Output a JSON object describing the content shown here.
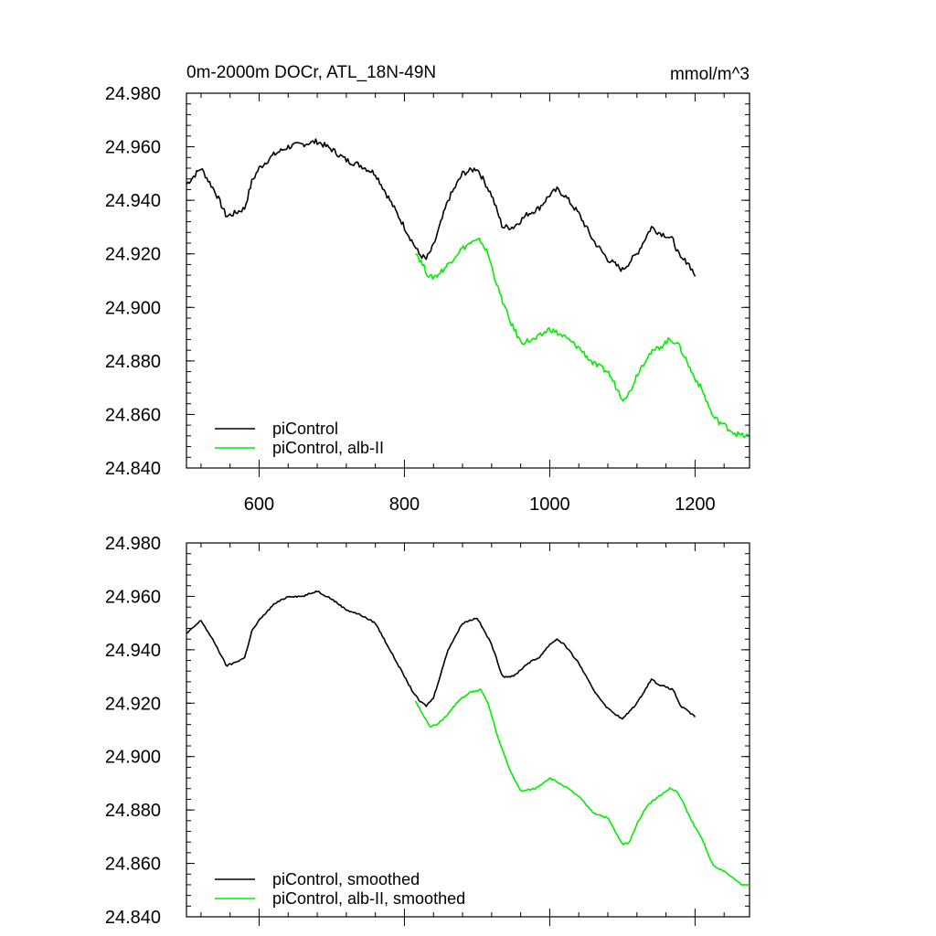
{
  "chart_data": [
    {
      "type": "line",
      "title": "0m-2000m DOCr, ATL_18N-49N",
      "units": "mmol/m^3",
      "xlabel": "",
      "ylabel": "",
      "xlim": [
        500,
        1275
      ],
      "ylim": [
        24.84,
        24.98
      ],
      "x_ticks": [
        600,
        800,
        1000,
        1200
      ],
      "y_ticks": [
        "24.980",
        "24.960",
        "24.940",
        "24.920",
        "24.900",
        "24.880",
        "24.860",
        "24.840"
      ],
      "show_x_tick_labels": true,
      "legend_position": "bottom-left",
      "series": [
        {
          "name": "piControl",
          "color": "#000000",
          "noise": 0.0022,
          "x": [
            500,
            520,
            540,
            555,
            565,
            580,
            590,
            600,
            620,
            640,
            660,
            680,
            700,
            720,
            740,
            760,
            780,
            800,
            810,
            820,
            830,
            840,
            860,
            880,
            900,
            920,
            935,
            950,
            970,
            985,
            1000,
            1010,
            1020,
            1040,
            1060,
            1080,
            1100,
            1120,
            1140,
            1150,
            1160,
            1170,
            1180,
            1190,
            1200
          ],
          "y": [
            24.946,
            24.952,
            24.943,
            24.934,
            24.935,
            24.937,
            24.947,
            24.952,
            24.957,
            24.96,
            24.961,
            24.962,
            24.959,
            24.955,
            24.953,
            24.95,
            24.94,
            24.93,
            24.925,
            24.92,
            24.918,
            24.923,
            24.94,
            24.95,
            24.952,
            24.942,
            24.93,
            24.93,
            24.935,
            24.937,
            24.942,
            24.944,
            24.942,
            24.935,
            24.925,
            24.918,
            24.914,
            24.92,
            24.93,
            24.928,
            24.927,
            24.925,
            24.918,
            24.917,
            24.912
          ]
        },
        {
          "name": "piControl, alb-II",
          "color": "#00ee00",
          "noise": 0.0022,
          "x": [
            815,
            825,
            835,
            845,
            860,
            875,
            890,
            905,
            915,
            930,
            945,
            960,
            980,
            1000,
            1020,
            1040,
            1060,
            1080,
            1100,
            1110,
            1120,
            1135,
            1150,
            1165,
            1175,
            1185,
            1195,
            1210,
            1225,
            1240,
            1255,
            1265,
            1275
          ],
          "y": [
            24.921,
            24.916,
            24.911,
            24.912,
            24.916,
            24.921,
            24.924,
            24.925,
            24.92,
            24.906,
            24.895,
            24.887,
            24.888,
            24.892,
            24.889,
            24.885,
            24.879,
            24.876,
            24.866,
            24.868,
            24.875,
            24.882,
            24.885,
            24.888,
            24.887,
            24.882,
            24.876,
            24.869,
            24.859,
            24.856,
            24.853,
            24.852,
            24.852
          ]
        }
      ]
    },
    {
      "type": "line",
      "title": "",
      "units": "",
      "xlabel": "",
      "ylabel": "",
      "xlim": [
        500,
        1275
      ],
      "ylim": [
        24.84,
        24.98
      ],
      "x_ticks": [
        600,
        800,
        1000,
        1200
      ],
      "y_ticks": [
        "24.980",
        "24.960",
        "24.940",
        "24.920",
        "24.900",
        "24.880",
        "24.860",
        "24.840"
      ],
      "show_x_tick_labels": false,
      "legend_position": "bottom-left",
      "series": [
        {
          "name": "piControl, smoothed",
          "color": "#000000",
          "noise": 0.0006,
          "x": [
            500,
            520,
            540,
            555,
            565,
            580,
            590,
            600,
            620,
            640,
            660,
            680,
            700,
            720,
            740,
            760,
            780,
            800,
            810,
            820,
            830,
            840,
            860,
            880,
            900,
            920,
            935,
            950,
            970,
            985,
            1000,
            1010,
            1020,
            1040,
            1060,
            1080,
            1100,
            1120,
            1140,
            1150,
            1160,
            1170,
            1180,
            1190,
            1200
          ],
          "y": [
            24.946,
            24.951,
            24.942,
            24.934,
            24.935,
            24.937,
            24.947,
            24.951,
            24.957,
            24.96,
            24.96,
            24.962,
            24.959,
            24.955,
            24.953,
            24.95,
            24.94,
            24.93,
            24.925,
            24.921,
            24.919,
            24.922,
            24.94,
            24.95,
            24.952,
            24.942,
            24.93,
            24.93,
            24.935,
            24.937,
            24.942,
            24.944,
            24.942,
            24.935,
            24.925,
            24.918,
            24.914,
            24.92,
            24.929,
            24.927,
            24.926,
            24.925,
            24.919,
            24.917,
            24.915
          ]
        },
        {
          "name": "piControl, alb-II, smoothed",
          "color": "#00ee00",
          "noise": 0.0006,
          "x": [
            815,
            825,
            835,
            845,
            860,
            875,
            890,
            905,
            915,
            930,
            945,
            960,
            980,
            1000,
            1020,
            1040,
            1060,
            1080,
            1100,
            1110,
            1120,
            1135,
            1150,
            1165,
            1175,
            1185,
            1195,
            1210,
            1225,
            1240,
            1255,
            1265,
            1275
          ],
          "y": [
            24.921,
            24.916,
            24.911,
            24.912,
            24.916,
            24.921,
            24.924,
            24.925,
            24.92,
            24.906,
            24.895,
            24.887,
            24.888,
            24.892,
            24.889,
            24.885,
            24.879,
            24.877,
            24.867,
            24.868,
            24.875,
            24.882,
            24.885,
            24.888,
            24.887,
            24.882,
            24.876,
            24.869,
            24.859,
            24.857,
            24.854,
            24.852,
            24.852
          ]
        }
      ]
    }
  ]
}
